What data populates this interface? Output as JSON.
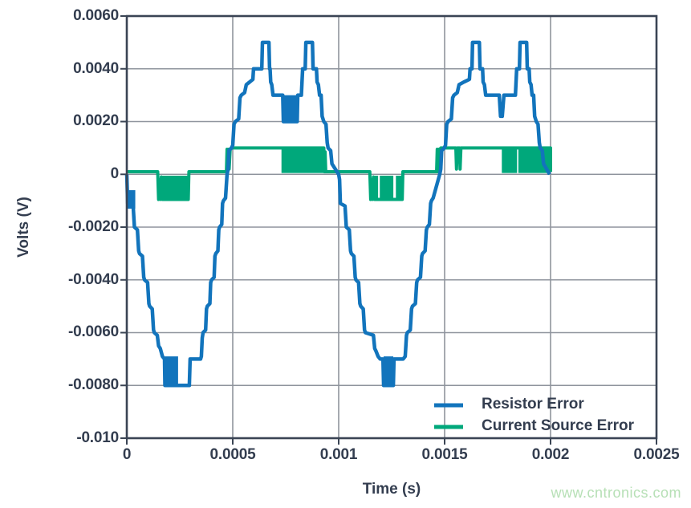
{
  "figure": {
    "background": "#ffffff",
    "watermark": {
      "text": "www.cntronics.com",
      "color": "#b7e0b6"
    }
  },
  "chart_data": {
    "type": "line",
    "title": "",
    "xlabel": "Time (s)",
    "ylabel": "Volts (V)",
    "xlim": [
      0,
      0.0025
    ],
    "ylim": [
      -0.01,
      0.006
    ],
    "grid": true,
    "legend_position": "inside lower right",
    "axis_color": "#3a4454",
    "grid_color": "#8f949d",
    "text_color": "#333d4f",
    "x_tick_values": [
      0,
      0.0005,
      0.001,
      0.0015,
      0.002,
      0.0025
    ],
    "x_tick_labels": [
      "0",
      "0.0005",
      "0.001",
      "0.0015",
      "0.002",
      "0.0025"
    ],
    "y_tick_values": [
      0.006,
      0.004,
      0.002,
      0,
      -0.002,
      -0.004,
      -0.006,
      -0.008,
      -0.01
    ],
    "y_tick_labels": [
      "0.0060",
      "0.0040",
      "0.0020",
      "0",
      "-0.0020",
      "-0.0040",
      "-0.0060",
      "-0.0080",
      "-0.010"
    ],
    "series": [
      {
        "name": "Resistor Error",
        "color": "#1274bc",
        "line_width": 4.5,
        "points": [
          [
            0,
            0
          ],
          [
            4e-06,
            -0.0011
          ],
          [
            3e-05,
            -0.0012
          ],
          [
            3.6e-05,
            -0.002
          ],
          [
            5e-05,
            -0.0021
          ],
          [
            5.6e-05,
            -0.0029
          ],
          [
            6e-05,
            -0.003
          ],
          [
            7.4e-05,
            -0.0031
          ],
          [
            8e-05,
            -0.0039
          ],
          [
            8.4e-05,
            -0.004
          ],
          [
            9.8e-05,
            -0.0041
          ],
          [
            0.000104,
            -0.0049
          ],
          [
            0.000108,
            -0.005
          ],
          [
            0.00012,
            -0.0051
          ],
          [
            0.000126,
            -0.0059
          ],
          [
            0.00013,
            -0.006
          ],
          [
            0.000144,
            -0.0061
          ],
          [
            0.00015,
            -0.0065
          ],
          [
            0.000158,
            -0.0066
          ],
          [
            0.000168,
            -0.0069
          ],
          [
            0.000178,
            -0.007
          ],
          [
            0.00018,
            -0.008
          ],
          [
            0.000295,
            -0.008
          ],
          [
            0.000299,
            -0.007
          ],
          [
            0.000348,
            -0.007
          ],
          [
            0.000352,
            -0.0069
          ],
          [
            0.000356,
            -0.0062
          ],
          [
            0.00036,
            -0.006
          ],
          [
            0.000372,
            -0.0059
          ],
          [
            0.000376,
            -0.0051
          ],
          [
            0.00038,
            -0.005
          ],
          [
            0.000392,
            -0.0049
          ],
          [
            0.000396,
            -0.0041
          ],
          [
            0.0004,
            -0.004
          ],
          [
            0.000412,
            -0.0039
          ],
          [
            0.000416,
            -0.0031
          ],
          [
            0.00042,
            -0.003
          ],
          [
            0.00043,
            -0.0029
          ],
          [
            0.000434,
            -0.0021
          ],
          [
            0.000438,
            -0.002
          ],
          [
            0.000448,
            -0.0019
          ],
          [
            0.000452,
            -0.0011
          ],
          [
            0.000456,
            -0.001
          ],
          [
            0.000466,
            -0.0009
          ],
          [
            0.000473,
            0
          ],
          [
            0.000478,
            0.0002
          ],
          [
            0.000482,
            0.0009
          ],
          [
            0.000494,
            0.001
          ],
          [
            0.0005,
            0.0011
          ],
          [
            0.000506,
            0.0019
          ],
          [
            0.000512,
            0.002
          ],
          [
            0.000528,
            0.0021
          ],
          [
            0.000534,
            0.0029
          ],
          [
            0.00054,
            0.003
          ],
          [
            0.000556,
            0.0031
          ],
          [
            0.000564,
            0.0034
          ],
          [
            0.00058,
            0.0035
          ],
          [
            0.000595,
            0.0036
          ],
          [
            0.000598,
            0.004
          ],
          [
            0.000637,
            0.004
          ],
          [
            0.00064,
            0.005
          ],
          [
            0.000671,
            0.005
          ],
          [
            0.000674,
            0.004
          ],
          [
            0.000676,
            0.004
          ],
          [
            0.000679,
            0.0035
          ],
          [
            0.000684,
            0.0034
          ],
          [
            0.00069,
            0.003
          ],
          [
            0.000736,
            0.003
          ],
          [
            0.000739,
            0.002
          ],
          [
            0.000804,
            0.002
          ],
          [
            0.000807,
            0.003
          ],
          [
            0.000824,
            0.003
          ],
          [
            0.000827,
            0.0035
          ],
          [
            0.00083,
            0.004
          ],
          [
            0.000842,
            0.004
          ],
          [
            0.000845,
            0.005
          ],
          [
            0.000876,
            0.005
          ],
          [
            0.000879,
            0.004
          ],
          [
            0.000895,
            0.004
          ],
          [
            0.000898,
            0.0035
          ],
          [
            0.000904,
            0.0034
          ],
          [
            0.00091,
            0.003
          ],
          [
            0.000917,
            0.003
          ],
          [
            0.000922,
            0.0022
          ],
          [
            0.00093,
            0.002
          ],
          [
            0.00094,
            0.0019
          ],
          [
            0.000946,
            0.0012
          ],
          [
            0.00095,
            0.001
          ],
          [
            0.000962,
            0.0009
          ],
          [
            0.000968,
            0.0004
          ],
          [
            0.001,
            0
          ],
          [
            0.001004,
            -0.0002
          ],
          [
            0.001008,
            -0.0011
          ],
          [
            0.00103,
            -0.0012
          ],
          [
            0.001036,
            -0.002
          ],
          [
            0.00105,
            -0.0021
          ],
          [
            0.001056,
            -0.0029
          ],
          [
            0.00106,
            -0.003
          ],
          [
            0.001072,
            -0.0031
          ],
          [
            0.001078,
            -0.0039
          ],
          [
            0.001082,
            -0.004
          ],
          [
            0.001094,
            -0.0041
          ],
          [
            0.0011,
            -0.0049
          ],
          [
            0.001104,
            -0.005
          ],
          [
            0.001116,
            -0.0051
          ],
          [
            0.001122,
            -0.0059
          ],
          [
            0.001126,
            -0.006
          ],
          [
            0.001164,
            -0.0061
          ],
          [
            0.00117,
            -0.0066
          ],
          [
            0.001176,
            -0.0067
          ],
          [
            0.001186,
            -0.0069
          ],
          [
            0.001196,
            -0.007
          ],
          [
            0.001209,
            -0.007
          ],
          [
            0.001212,
            -0.008
          ],
          [
            0.001258,
            -0.008
          ],
          [
            0.001261,
            -0.007
          ],
          [
            0.001304,
            -0.007
          ],
          [
            0.001314,
            -0.0069
          ],
          [
            0.00132,
            -0.0061
          ],
          [
            0.001324,
            -0.006
          ],
          [
            0.001338,
            -0.0059
          ],
          [
            0.001344,
            -0.0051
          ],
          [
            0.001348,
            -0.005
          ],
          [
            0.001362,
            -0.0049
          ],
          [
            0.001368,
            -0.0041
          ],
          [
            0.001372,
            -0.004
          ],
          [
            0.001386,
            -0.0039
          ],
          [
            0.001392,
            -0.0031
          ],
          [
            0.001396,
            -0.003
          ],
          [
            0.001408,
            -0.0029
          ],
          [
            0.001414,
            -0.0021
          ],
          [
            0.001418,
            -0.002
          ],
          [
            0.001428,
            -0.0019
          ],
          [
            0.001434,
            -0.0011
          ],
          [
            0.001438,
            -0.001
          ],
          [
            0.001446,
            -0.0009
          ],
          [
            0.001477,
            0
          ],
          [
            0.001482,
            0.0002
          ],
          [
            0.001486,
            0.0009
          ],
          [
            0.001498,
            0.001
          ],
          [
            0.001504,
            0.0011
          ],
          [
            0.00151,
            0.0019
          ],
          [
            0.001516,
            0.002
          ],
          [
            0.001532,
            0.0021
          ],
          [
            0.001538,
            0.0029
          ],
          [
            0.001544,
            0.003
          ],
          [
            0.00156,
            0.0031
          ],
          [
            0.001568,
            0.0034
          ],
          [
            0.001591,
            0.0035
          ],
          [
            0.001617,
            0.0036
          ],
          [
            0.00162,
            0.004
          ],
          [
            0.001629,
            0.004
          ],
          [
            0.001632,
            0.005
          ],
          [
            0.001664,
            0.005
          ],
          [
            0.001667,
            0.004
          ],
          [
            0.001679,
            0.004
          ],
          [
            0.001682,
            0.0035
          ],
          [
            0.001688,
            0.0034
          ],
          [
            0.001694,
            0.003
          ],
          [
            0.001758,
            0.003
          ],
          [
            0.001764,
            0.0022
          ],
          [
            0.001772,
            0.0022
          ],
          [
            0.00178,
            0.003
          ],
          [
            0.001834,
            0.003
          ],
          [
            0.001837,
            0.0035
          ],
          [
            0.00184,
            0.004
          ],
          [
            0.001853,
            0.004
          ],
          [
            0.001856,
            0.005
          ],
          [
            0.001887,
            0.005
          ],
          [
            0.00189,
            0.004
          ],
          [
            0.001899,
            0.004
          ],
          [
            0.001902,
            0.0035
          ],
          [
            0.001908,
            0.0034
          ],
          [
            0.001913,
            0.003
          ],
          [
            0.00192,
            0.003
          ],
          [
            0.001925,
            0.0022
          ],
          [
            0.001933,
            0.002
          ],
          [
            0.001941,
            0.0019
          ],
          [
            0.001947,
            0.0012
          ],
          [
            0.001951,
            0.001
          ],
          [
            0.001961,
            0.0009
          ],
          [
            0.001967,
            0.0004
          ],
          [
            0.001996,
            0
          ]
        ],
        "solid_bands": [
          [
            2e-06,
            4e-05,
            -0.0006,
            -0.0013
          ],
          [
            0.00018,
            0.000242,
            -0.0069,
            -0.008
          ],
          [
            0.000739,
            0.000804,
            0.002,
            0.003
          ],
          [
            0.001212,
            0.001258,
            -0.0069,
            -0.008
          ]
        ]
      },
      {
        "name": "Current Source Error",
        "color": "#00a87b",
        "line_width": 4,
        "points": [
          [
            0,
            0.0001
          ],
          [
            0.000146,
            0.0001
          ],
          [
            0.00015,
            -0.00095
          ],
          [
            0.000155,
            -0.0002
          ],
          [
            0.00016,
            -0.00095
          ],
          [
            0.000163,
            -0.0001
          ],
          [
            0.000168,
            -0.00095
          ],
          [
            0.00029,
            -0.00095
          ],
          [
            0.000293,
            0.0001
          ],
          [
            0.00047,
            0.0001
          ],
          [
            0.000473,
            0.00095
          ],
          [
            0.000476,
            0.0001
          ],
          [
            0.000479,
            0.00095
          ],
          [
            0.000483,
            0.0002
          ],
          [
            0.000488,
            0.00095
          ],
          [
            0.000492,
            0.001
          ],
          [
            0.00093,
            0.001
          ],
          [
            0.000933,
            0.0001
          ],
          [
            0.000936,
            0.00085
          ],
          [
            0.000939,
            0.0001
          ],
          [
            0.001147,
            0.0001
          ],
          [
            0.001151,
            -0.00095
          ],
          [
            0.001156,
            -0.0002
          ],
          [
            0.001161,
            -0.00095
          ],
          [
            0.001164,
            -0.0001
          ],
          [
            0.00117,
            -0.00095
          ],
          [
            0.0013,
            -0.00095
          ],
          [
            0.001303,
            0.0001
          ],
          [
            0.001462,
            0.0001
          ],
          [
            0.001465,
            0.00095
          ],
          [
            0.001468,
            0.0001
          ],
          [
            0.001471,
            0.00095
          ],
          [
            0.001475,
            0.0002
          ],
          [
            0.001478,
            0.00095
          ],
          [
            0.001482,
            0.001
          ],
          [
            0.001553,
            0.001
          ],
          [
            0.001556,
            0.0002
          ],
          [
            0.00156,
            0.001
          ],
          [
            0.00157,
            0.001
          ],
          [
            0.001573,
            0.0002
          ],
          [
            0.001577,
            0.001
          ],
          [
            0.002,
            0.001
          ],
          [
            0.002,
            0.0001
          ]
        ],
        "solid_bands": [
          [
            0.000168,
            0.00029,
            -5e-05,
            -0.00095
          ],
          [
            0.00073,
            0.00093,
            5e-05,
            0.00095
          ],
          [
            0.00117,
            0.001186,
            -5e-05,
            -0.00095
          ],
          [
            0.001194,
            0.001258,
            -5e-05,
            -0.00095
          ],
          [
            0.00127,
            0.0013,
            -5e-05,
            -0.00095
          ],
          [
            0.00177,
            0.001842,
            5e-05,
            0.00095
          ],
          [
            0.001848,
            0.002,
            5e-05,
            0.00095
          ]
        ]
      }
    ]
  }
}
